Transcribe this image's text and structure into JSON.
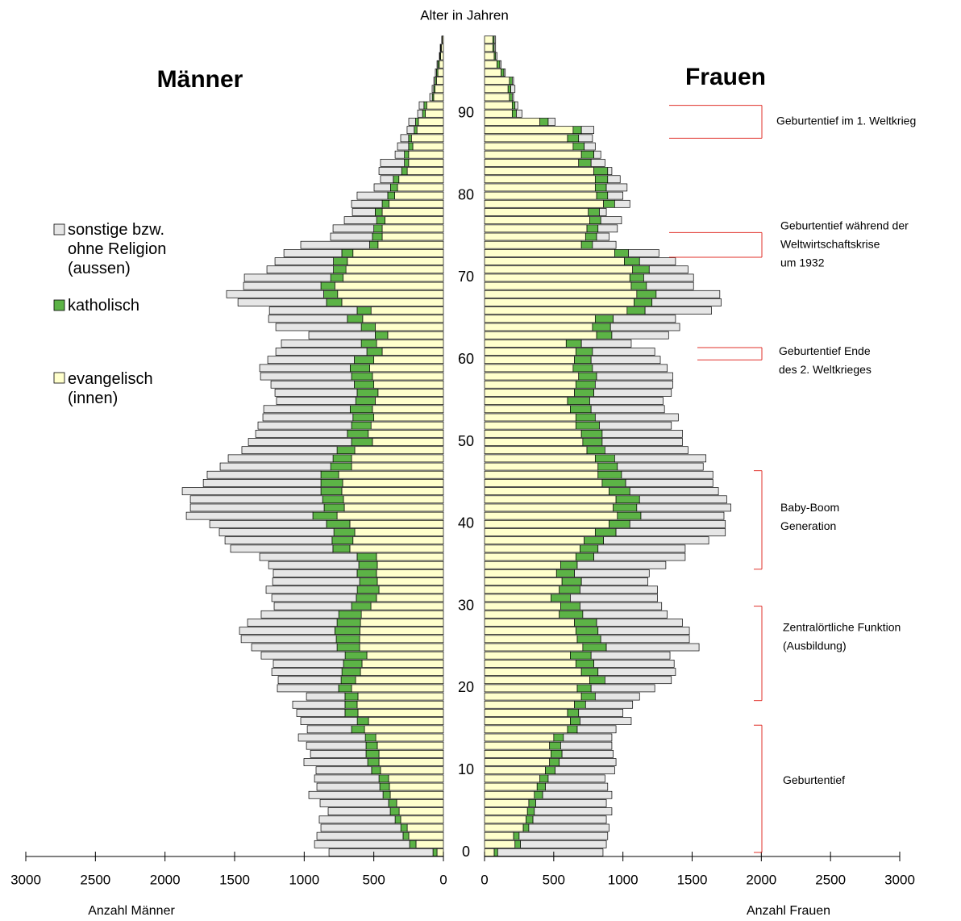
{
  "chart_data": {
    "type": "population-pyramid",
    "age_label": "Alter in Jahren",
    "ages": [
      0,
      1,
      2,
      3,
      4,
      5,
      6,
      7,
      8,
      9,
      10,
      11,
      12,
      13,
      14,
      15,
      16,
      17,
      18,
      19,
      20,
      21,
      22,
      23,
      24,
      25,
      26,
      27,
      28,
      29,
      30,
      31,
      32,
      33,
      34,
      35,
      36,
      37,
      38,
      39,
      40,
      41,
      42,
      43,
      44,
      45,
      46,
      47,
      48,
      49,
      50,
      51,
      52,
      53,
      54,
      55,
      56,
      57,
      58,
      59,
      60,
      61,
      62,
      63,
      64,
      65,
      66,
      67,
      68,
      69,
      70,
      71,
      72,
      73,
      74,
      75,
      76,
      77,
      78,
      79,
      80,
      81,
      82,
      83,
      84,
      85,
      86,
      87,
      88,
      89,
      90,
      91,
      92,
      93,
      94,
      95,
      96,
      97,
      98,
      99
    ],
    "ylim": [
      0,
      99
    ],
    "yticks": [
      0,
      10,
      20,
      30,
      40,
      50,
      60,
      70,
      80,
      90
    ],
    "xlim": [
      0,
      3000
    ],
    "xticks": [
      0,
      500,
      1000,
      1500,
      2000,
      2500,
      3000
    ],
    "sides": [
      {
        "title": "Männer",
        "xlabel": "Anzahl Männer",
        "series": [
          {
            "name": "evangelisch (innen)",
            "color": "#ffffcc",
            "values": [
              46,
              197,
              249,
              260,
              307,
              318,
              336,
              382,
              388,
              394,
              452,
              463,
              463,
              475,
              486,
              567,
              538,
              614,
              620,
              614,
              660,
              631,
              596,
              585,
              550,
              602,
              602,
              600,
              596,
              590,
              521,
              481,
              463,
              475,
              481,
              475,
              481,
              672,
              650,
              637,
              672,
              764,
              712,
              718,
              730,
              724,
              753,
              660,
              660,
              637,
              510,
              540,
              520,
              500,
              510,
              490,
              470,
              500,
              510,
              530,
              500,
              440,
              480,
              400,
              490,
              580,
              520,
              730,
              760,
              780,
              720,
              700,
              690,
              650,
              470,
              440,
              440,
              420,
              440,
              390,
              350,
              330,
              320,
              260,
              250,
              250,
              220,
              230,
              190,
              180,
              130,
              120,
              70,
              60,
              50,
              40,
              30,
              20,
              15,
              8
            ]
          },
          {
            "name": "katholisch",
            "color": "#5cb346",
            "values": [
              29,
              46,
              41,
              46,
              40,
              64,
              58,
              52,
              69,
              69,
              64,
              81,
              93,
              81,
              75,
              93,
              81,
              93,
              87,
              93,
              93,
              104,
              133,
              133,
              156,
              162,
              168,
              180,
              168,
              162,
              139,
              145,
              156,
              127,
              139,
              133,
              139,
              122,
              150,
              150,
              168,
              174,
              145,
              150,
              150,
              156,
              127,
              150,
              133,
              127,
              150,
              150,
              140,
              150,
              160,
              140,
              150,
              140,
              150,
              140,
              140,
              110,
              110,
              90,
              100,
              110,
              100,
              110,
              100,
              100,
              90,
              90,
              100,
              80,
              60,
              70,
              60,
              60,
              50,
              50,
              50,
              50,
              40,
              40,
              30,
              30,
              30,
              20,
              20,
              20,
              20,
              20,
              10,
              10,
              10,
              10,
              10,
              5,
              5,
              2
            ]
          },
          {
            "name": "sonstige bzw. ohne Religion (aussen)",
            "color": "#e6e6e6",
            "values": [
              747,
              683,
              619,
              574,
              545,
              446,
              492,
              533,
              452,
              463,
              399,
              458,
              399,
              428,
              481,
              318,
              406,
              347,
              376,
              277,
              440,
              452,
              504,
              504,
              603,
              614,
              683,
              685,
              643,
              557,
              556,
              607,
              655,
              625,
              602,
              648,
              700,
              735,
              769,
              823,
              839,
              909,
              961,
              950,
              996,
              845,
              817,
              794,
              753,
              684,
              741,
              659,
              672,
              647,
              621,
              569,
              590,
              599,
              654,
              650,
              622,
              654,
              574,
              477,
              614,
              566,
              630,
              636,
              698,
              556,
              620,
              478,
              420,
              416,
              495,
              301,
              293,
              232,
              164,
              220,
              220,
              118,
              92,
              163,
              172,
              67,
              80,
              57,
              51,
              49,
              35,
              34,
              18,
              11,
              9,
              8,
              6,
              4,
              3,
              2
            ]
          }
        ]
      },
      {
        "title": "Frauen",
        "xlabel": "Anzahl Frauen",
        "series": [
          {
            "name": "evangelisch (innen)",
            "color": "#ffffcc",
            "values": [
              70,
              220,
              210,
              280,
              300,
              310,
              320,
              360,
              380,
              400,
              440,
              470,
              480,
              470,
              500,
              600,
              620,
              600,
              650,
              700,
              670,
              760,
              700,
              660,
              620,
              710,
              670,
              660,
              650,
              540,
              550,
              480,
              540,
              560,
              520,
              550,
              660,
              690,
              720,
              800,
              900,
              960,
              930,
              950,
              900,
              850,
              820,
              820,
              800,
              740,
              710,
              700,
              660,
              660,
              620,
              600,
              650,
              660,
              680,
              640,
              650,
              660,
              590,
              810,
              780,
              800,
              1030,
              1080,
              1100,
              1060,
              1050,
              1070,
              1010,
              940,
              700,
              730,
              740,
              760,
              750,
              860,
              810,
              800,
              800,
              790,
              680,
              700,
              640,
              600,
              640,
              400,
              200,
              200,
              180,
              170,
              180,
              120,
              90,
              70,
              60,
              60
            ]
          },
          {
            "name": "katholisch",
            "color": "#5cb346",
            "values": [
              25,
              40,
              40,
              40,
              50,
              50,
              50,
              60,
              60,
              60,
              70,
              70,
              80,
              80,
              70,
              70,
              70,
              80,
              80,
              100,
              100,
              110,
              120,
              130,
              150,
              170,
              170,
              160,
              160,
              170,
              140,
              140,
              150,
              140,
              130,
              120,
              130,
              130,
              140,
              150,
              150,
              170,
              170,
              170,
              150,
              170,
              170,
              140,
              140,
              130,
              140,
              150,
              170,
              140,
              150,
              160,
              140,
              140,
              130,
              140,
              120,
              120,
              110,
              110,
              130,
              130,
              130,
              130,
              140,
              110,
              100,
              120,
              110,
              100,
              80,
              80,
              80,
              80,
              80,
              80,
              80,
              80,
              90,
              100,
              90,
              90,
              80,
              80,
              60,
              60,
              30,
              20,
              20,
              20,
              20,
              20,
              20,
              10,
              10,
              10
            ]
          },
          {
            "name": "sonstige bzw. ohne Religion (aussen)",
            "color": "#e6e6e6",
            "values": [
              761,
              620,
              640,
              580,
              530,
              560,
              510,
              500,
              450,
              410,
              430,
              410,
              370,
              370,
              350,
              280,
              370,
              320,
              340,
              320,
              460,
              480,
              560,
              580,
              570,
              670,
              640,
              660,
              620,
              610,
              590,
              630,
              560,
              480,
              540,
              640,
              660,
              630,
              760,
              790,
              690,
              600,
              680,
              630,
              640,
              630,
              660,
              620,
              660,
              600,
              580,
              580,
              520,
              600,
              530,
              530,
              560,
              560,
              550,
              540,
              500,
              450,
              360,
              410,
              500,
              450,
              480,
              500,
              460,
              340,
              360,
              280,
              260,
              220,
              170,
              90,
              140,
              150,
              50,
              110,
              110,
              150,
              90,
              30,
              100,
              50,
              80,
              100,
              90,
              50,
              40,
              20,
              10,
              30,
              10,
              10,
              10,
              10,
              10,
              10
            ]
          }
        ]
      }
    ],
    "annotations": [
      {
        "lines": [
          "Geburtentief im 1. Weltkrieg"
        ],
        "from": 87,
        "to": 91
      },
      {
        "lines": [
          "Geburtentief während der",
          "Weltwirtschaftskrise",
          "um 1932"
        ],
        "from": 72.5,
        "to": 75.5
      },
      {
        "lines": [
          "Geburtentief Ende",
          "des 2. Weltkrieges"
        ],
        "from": 60,
        "to": 61.5
      },
      {
        "lines": [
          "Baby-Boom",
          "Generation"
        ],
        "from": 34.5,
        "to": 46.5
      },
      {
        "lines": [
          "Zentralörtliche Funktion",
          "(Ausbildung)"
        ],
        "from": 18.5,
        "to": 30
      },
      {
        "lines": [
          "Geburtentief"
        ],
        "from": 0,
        "to": 15.5
      }
    ]
  }
}
